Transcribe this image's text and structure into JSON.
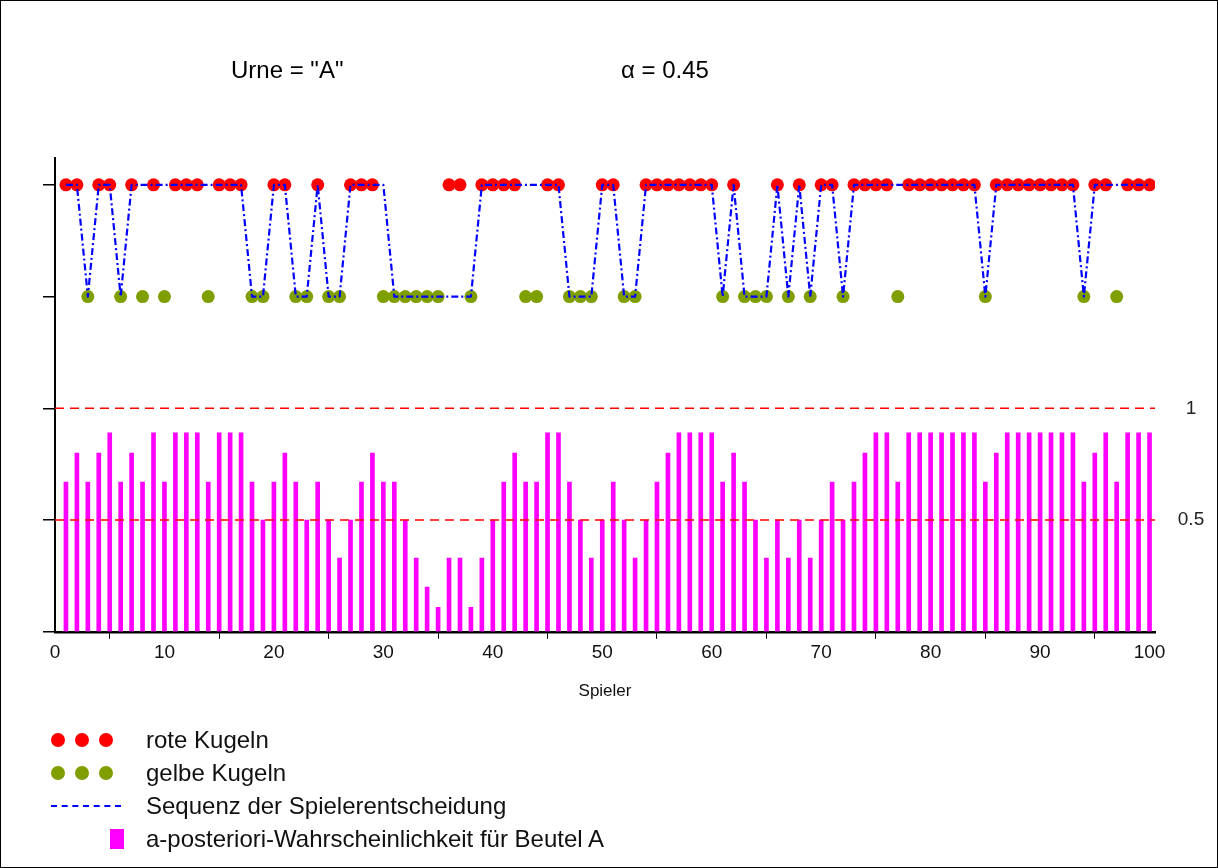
{
  "chart_data": {
    "type": "bar",
    "title": "Urne = \"A\"",
    "subtitle": "α = 0.45",
    "xlabel": "Spieler",
    "x": [
      1,
      2,
      3,
      4,
      5,
      6,
      7,
      8,
      9,
      10,
      11,
      12,
      13,
      14,
      15,
      16,
      17,
      18,
      19,
      20,
      21,
      22,
      23,
      24,
      25,
      26,
      27,
      28,
      29,
      30,
      31,
      32,
      33,
      34,
      35,
      36,
      37,
      38,
      39,
      40,
      41,
      42,
      43,
      44,
      45,
      46,
      47,
      48,
      49,
      50,
      51,
      52,
      53,
      54,
      55,
      56,
      57,
      58,
      59,
      60,
      61,
      62,
      63,
      64,
      65,
      66,
      67,
      68,
      69,
      70,
      71,
      72,
      73,
      74,
      75,
      76,
      77,
      78,
      79,
      80,
      81,
      82,
      83,
      84,
      85,
      86,
      87,
      88,
      89,
      90,
      91,
      92,
      93,
      94,
      95,
      96,
      97,
      98,
      99,
      100
    ],
    "series": [
      {
        "name": "rote Kugeln",
        "type": "scatter",
        "marker": "circle",
        "color": "#ff0000",
        "x": [
          1,
          2,
          4,
          5,
          7,
          9,
          11,
          12,
          13,
          15,
          16,
          17,
          20,
          21,
          24,
          27,
          28,
          29,
          36,
          37,
          39,
          40,
          41,
          42,
          45,
          46,
          50,
          51,
          54,
          55,
          56,
          57,
          58,
          59,
          60,
          62,
          66,
          68,
          70,
          71,
          73,
          74,
          75,
          76,
          78,
          79,
          80,
          81,
          82,
          83,
          84,
          86,
          87,
          88,
          89,
          90,
          91,
          92,
          93,
          95,
          96,
          98,
          99,
          100
        ],
        "values": [
          2,
          2,
          2,
          2,
          2,
          2,
          2,
          2,
          2,
          2,
          2,
          2,
          2,
          2,
          2,
          2,
          2,
          2,
          2,
          2,
          2,
          2,
          2,
          2,
          2,
          2,
          2,
          2,
          2,
          2,
          2,
          2,
          2,
          2,
          2,
          2,
          2,
          2,
          2,
          2,
          2,
          2,
          2,
          2,
          2,
          2,
          2,
          2,
          2,
          2,
          2,
          2,
          2,
          2,
          2,
          2,
          2,
          2,
          2,
          2,
          2,
          2,
          2,
          2
        ]
      },
      {
        "name": "gelbe Kugeln",
        "type": "scatter",
        "marker": "circle",
        "color": "#7f9f00",
        "x": [
          3,
          6,
          8,
          10,
          14,
          18,
          19,
          22,
          23,
          25,
          26,
          30,
          31,
          32,
          33,
          34,
          35,
          38,
          43,
          44,
          47,
          48,
          49,
          52,
          53,
          61,
          63,
          64,
          65,
          67,
          69,
          72,
          77,
          85,
          94,
          97
        ],
        "values": [
          1.5,
          1.5,
          1.5,
          1.5,
          1.5,
          1.5,
          1.5,
          1.5,
          1.5,
          1.5,
          1.5,
          1.5,
          1.5,
          1.5,
          1.5,
          1.5,
          1.5,
          1.5,
          1.5,
          1.5,
          1.5,
          1.5,
          1.5,
          1.5,
          1.5,
          1.5,
          1.5,
          1.5,
          1.5,
          1.5,
          1.5,
          1.5,
          1.5,
          1.5,
          1.5,
          1.5
        ]
      },
      {
        "name": "Sequenz der Spielerentscheidung",
        "type": "line",
        "marker": "none",
        "line_style": "dashed",
        "color": "#0000ff",
        "values": [
          2,
          2,
          1.5,
          2,
          2,
          1.5,
          2,
          2,
          2,
          2,
          2,
          2,
          2,
          2,
          2,
          2,
          2,
          1.5,
          1.5,
          2,
          2,
          1.5,
          1.5,
          2,
          1.5,
          1.5,
          2,
          2,
          2,
          2,
          1.5,
          1.5,
          1.5,
          1.5,
          1.5,
          1.5,
          1.5,
          1.5,
          2,
          2,
          2,
          2,
          2,
          2,
          2,
          2,
          1.5,
          1.5,
          1.5,
          2,
          2,
          1.5,
          1.5,
          2,
          2,
          2,
          2,
          2,
          2,
          2,
          1.5,
          2,
          1.5,
          1.5,
          1.5,
          2,
          1.5,
          2,
          1.5,
          2,
          2,
          1.5,
          2,
          2,
          2,
          2,
          2,
          2,
          2,
          2,
          2,
          2,
          2,
          2,
          1.5,
          2,
          2,
          2,
          2,
          2,
          2,
          2,
          2,
          1.5,
          2,
          2,
          2,
          2,
          2,
          2
        ]
      },
      {
        "name": "a-posteriori-Wahrscheinlichkeit für Beutel  A",
        "color": "#ff00ff",
        "values": [
          0.67,
          0.8,
          0.67,
          0.8,
          0.89,
          0.67,
          0.8,
          0.67,
          0.89,
          0.67,
          0.89,
          0.89,
          0.89,
          0.67,
          0.89,
          0.89,
          0.89,
          0.67,
          0.5,
          0.67,
          0.8,
          0.67,
          0.5,
          0.67,
          0.5,
          0.33,
          0.5,
          0.67,
          0.8,
          0.67,
          0.67,
          0.5,
          0.33,
          0.2,
          0.11,
          0.33,
          0.33,
          0.11,
          0.33,
          0.5,
          0.67,
          0.8,
          0.67,
          0.67,
          0.89,
          0.89,
          0.67,
          0.5,
          0.33,
          0.5,
          0.67,
          0.5,
          0.33,
          0.5,
          0.67,
          0.8,
          0.89,
          0.89,
          0.89,
          0.89,
          0.67,
          0.8,
          0.67,
          0.5,
          0.33,
          0.5,
          0.33,
          0.5,
          0.33,
          0.5,
          0.67,
          0.5,
          0.67,
          0.8,
          0.89,
          0.89,
          0.67,
          0.89,
          0.89,
          0.89,
          0.89,
          0.89,
          0.89,
          0.89,
          0.67,
          0.8,
          0.89,
          0.89,
          0.89,
          0.89,
          0.89,
          0.89,
          0.89,
          0.67,
          0.8,
          0.89,
          0.67,
          0.89,
          0.89,
          0.89
        ]
      }
    ],
    "xlim": [
      0,
      100.5
    ],
    "xticks": [
      0,
      10,
      20,
      30,
      40,
      50,
      60,
      70,
      80,
      90,
      100
    ],
    "ylim": [
      0,
      2.12
    ],
    "yticks": [
      {
        "value": 0,
        "label": null
      },
      {
        "value": 0.5,
        "label": "0.5"
      },
      {
        "value": 1,
        "label": "1"
      },
      {
        "value": 1.5,
        "label": null
      },
      {
        "value": 2,
        "label": null
      }
    ],
    "tick_labels": "xy",
    "ref_lines": [
      {
        "axis": "y",
        "value": 1,
        "color": "#ff0000",
        "line_style": "dashed"
      },
      {
        "axis": "y",
        "value": 0.5,
        "color": "#ff0000",
        "line_style": "dashed"
      }
    ],
    "grid": false,
    "legend": "bottom"
  }
}
